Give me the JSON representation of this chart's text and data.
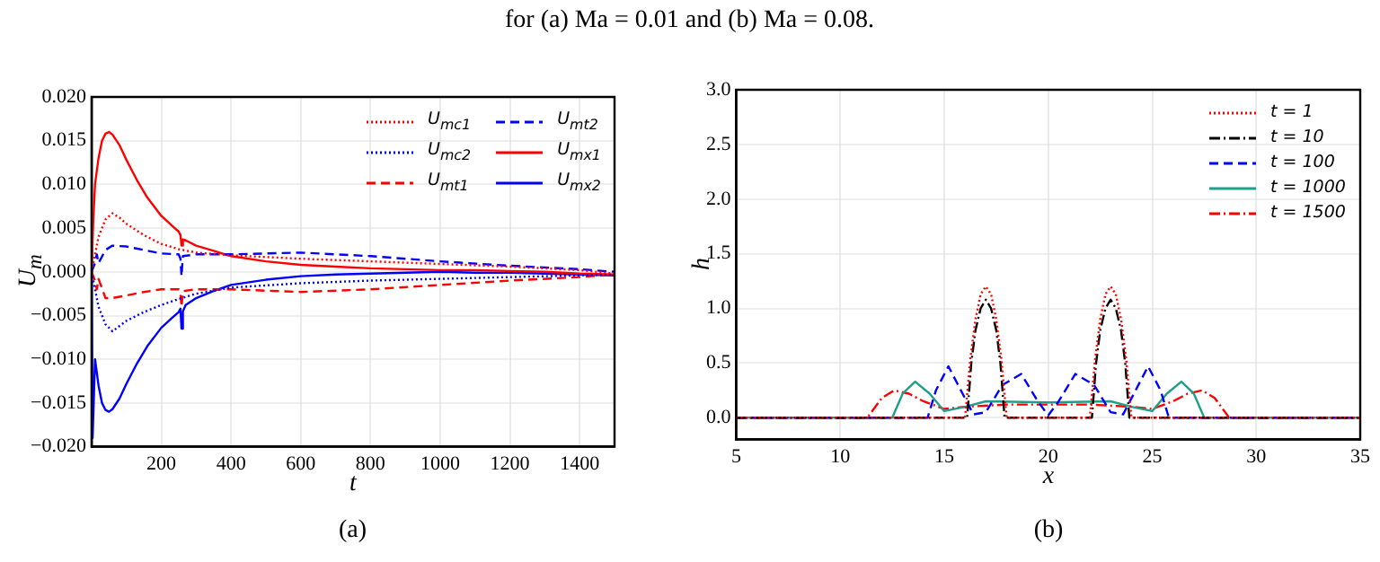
{
  "chart_data": [
    {
      "type": "line",
      "xlabel": "t",
      "ylabel": "U$_{m}$",
      "annotations": [
        "for (a) Ma = 0.01 and (b) Ma = 0.08.",
        "(a)"
      ],
      "xlim": [
        0,
        1500
      ],
      "xticks": [
        200,
        400,
        600,
        800,
        1000,
        1200,
        1400
      ],
      "ylim": [
        -0.02,
        0.02
      ],
      "yticks": [
        {
          "value": -0.02,
          "label": "−0.020"
        },
        {
          "value": -0.015,
          "label": "−0.015"
        },
        {
          "value": -0.01,
          "label": "−0.010"
        },
        {
          "value": -0.005,
          "label": "−0.005"
        },
        {
          "value": 0,
          "label": "0.000"
        },
        {
          "value": 0.005,
          "label": "0.005"
        },
        {
          "value": 0.01,
          "label": "0.010"
        },
        {
          "value": 0.015,
          "label": "0.015"
        },
        {
          "value": 0.02,
          "label": "0.020"
        }
      ],
      "grid": true,
      "legend": "top right",
      "marker": "none",
      "series": [
        {
          "name": "U$_{mc1}$",
          "color": "#ff0000",
          "line_style": "dotted",
          "x": [
            0,
            10,
            20,
            40,
            60,
            80,
            100,
            150,
            200,
            250,
            300,
            400,
            600,
            800,
            1000,
            1200,
            1400,
            1500
          ],
          "values": [
            0,
            0.002,
            0.004,
            0.006,
            0.0067,
            0.0062,
            0.0055,
            0.0042,
            0.0032,
            0.0026,
            0.0022,
            0.0019,
            0.0015,
            0.0012,
            0.0009,
            0.0006,
            0.0002,
            -0.0002
          ]
        },
        {
          "name": "U$_{mc2}$",
          "color": "#0000ff",
          "line_style": "dotted",
          "x": [
            0,
            10,
            20,
            40,
            60,
            80,
            100,
            150,
            200,
            250,
            300,
            400,
            600,
            800,
            1000,
            1200,
            1400,
            1500
          ],
          "values": [
            0,
            -0.002,
            -0.004,
            -0.006,
            -0.0068,
            -0.0062,
            -0.0056,
            -0.0046,
            -0.0038,
            -0.0031,
            -0.0025,
            -0.0018,
            -0.0013,
            -0.001,
            -0.0008,
            -0.0006,
            -0.0004,
            -0.0003
          ]
        },
        {
          "name": "U$_{mt1}$",
          "color": "#ff0000",
          "line_style": "dashed",
          "x": [
            0,
            10,
            15,
            20,
            40,
            60,
            100,
            150,
            200,
            250,
            255,
            258,
            262,
            300,
            400,
            600,
            800,
            1000,
            1200,
            1400,
            1500
          ],
          "values": [
            0,
            -0.001,
            -0.002,
            -0.0008,
            -0.003,
            -0.003,
            -0.0027,
            -0.0023,
            -0.002,
            -0.002,
            -0.0025,
            -0.004,
            -0.0022,
            -0.002,
            -0.002,
            -0.0023,
            -0.002,
            -0.0015,
            -0.001,
            -0.0006,
            -0.0003
          ]
        },
        {
          "name": "U$_{mt2}$",
          "color": "#0000ff",
          "line_style": "dashed",
          "x": [
            0,
            10,
            15,
            20,
            40,
            60,
            100,
            150,
            200,
            250,
            255,
            258,
            262,
            300,
            400,
            600,
            800,
            1000,
            1200,
            1400,
            1500
          ],
          "values": [
            0,
            0.001,
            0.002,
            0.001,
            0.0025,
            0.003,
            0.0029,
            0.0025,
            0.0021,
            0.002,
            0.0015,
            -0.0005,
            0.0018,
            0.002,
            0.002,
            0.0022,
            0.0018,
            0.0012,
            0.0007,
            0.0003,
            0
          ]
        },
        {
          "name": "U$_{mx1}$",
          "color": "#ff0000",
          "line_style": "solid",
          "x": [
            0,
            5,
            10,
            20,
            30,
            40,
            50,
            60,
            80,
            100,
            130,
            160,
            200,
            230,
            250,
            255,
            258,
            262,
            270,
            300,
            350,
            400,
            500,
            600,
            700,
            800,
            900,
            1000,
            1100,
            1200,
            1300,
            1400,
            1500
          ],
          "values": [
            0,
            0.006,
            0.01,
            0.013,
            0.015,
            0.0158,
            0.016,
            0.0157,
            0.0145,
            0.0128,
            0.0105,
            0.0085,
            0.0064,
            0.0053,
            0.0046,
            0.0042,
            0.003,
            0.0037,
            0.0036,
            0.003,
            0.0024,
            0.0018,
            0.0012,
            0.0008,
            0.0006,
            0.0004,
            0.0003,
            0.0002,
            0.0002,
            0.0001,
            0,
            -0.0002,
            -0.0003
          ]
        },
        {
          "name": "U$_{mx2}$",
          "color": "#0000ff",
          "line_style": "solid",
          "x": [
            0,
            3,
            10,
            20,
            30,
            40,
            50,
            60,
            80,
            100,
            130,
            160,
            200,
            230,
            250,
            255,
            258,
            262,
            270,
            300,
            350,
            400,
            500,
            600,
            700,
            800,
            900,
            1000,
            1100,
            1200,
            1300,
            1400,
            1500
          ],
          "values": [
            0,
            -0.019,
            -0.01,
            -0.013,
            -0.015,
            -0.0158,
            -0.016,
            -0.0157,
            -0.0145,
            -0.0128,
            -0.0105,
            -0.0085,
            -0.0064,
            -0.0053,
            -0.0046,
            -0.0042,
            -0.0065,
            -0.0045,
            -0.0038,
            -0.003,
            -0.0022,
            -0.0015,
            -0.0009,
            -0.0005,
            -0.0003,
            -0.0002,
            -0.0001,
            0,
            -0.0001,
            -0.0001,
            -0.0002,
            -0.0003,
            -0.0004
          ]
        }
      ]
    },
    {
      "type": "line",
      "xlabel": "x",
      "ylabel": "h",
      "annotations": [
        "(b)"
      ],
      "xlim": [
        5,
        35
      ],
      "xticks": [
        5,
        10,
        15,
        20,
        25,
        30,
        35
      ],
      "ylim": [
        -0.2,
        3.0
      ],
      "yticks": [
        {
          "value": 0,
          "label": "0.0"
        },
        0.5,
        {
          "value": 1,
          "label": "1.0"
        },
        1.5,
        {
          "value": 2,
          "label": "2.0"
        },
        2.5,
        {
          "value": 3,
          "label": "3.0"
        }
      ],
      "grid": true,
      "legend": "top right",
      "marker": "none",
      "series": [
        {
          "name": "t = 1",
          "color": "#ff0000",
          "line_style": "dotted",
          "x": [
            5,
            16,
            16.25,
            16.5,
            16.75,
            17,
            17.25,
            17.5,
            17.75,
            18,
            22,
            22.25,
            22.5,
            22.75,
            23,
            23.25,
            23.5,
            23.75,
            24,
            35
          ],
          "values": [
            0,
            0,
            0.53,
            0.9,
            1.13,
            1.2,
            1.13,
            0.9,
            0.53,
            0,
            0,
            0.53,
            0.9,
            1.13,
            1.2,
            1.13,
            0.9,
            0.53,
            0,
            0
          ]
        },
        {
          "name": "t = 10",
          "color": "#000000",
          "line_style": "dashdot",
          "x": [
            5,
            16.1,
            16.3,
            16.5,
            16.75,
            17,
            17.25,
            17.5,
            17.7,
            17.9,
            22.1,
            22.3,
            22.5,
            22.75,
            23,
            23.25,
            23.5,
            23.7,
            23.9,
            35
          ],
          "values": [
            0,
            0,
            0.5,
            0.8,
            1.0,
            1.08,
            1.0,
            0.8,
            0.5,
            0,
            0,
            0.5,
            0.8,
            1.0,
            1.08,
            1.0,
            0.8,
            0.5,
            0,
            0
          ]
        },
        {
          "name": "t = 100",
          "color": "#0000ff",
          "line_style": "dashed",
          "x": [
            5,
            14.2,
            14.6,
            15.2,
            15.8,
            16.4,
            17,
            17.8,
            18.7,
            19.5,
            20,
            20.5,
            21.3,
            22.2,
            23,
            23.6,
            24.2,
            24.8,
            25.4,
            25.8,
            35
          ],
          "values": [
            0,
            0,
            0.25,
            0.47,
            0.25,
            0.03,
            0.05,
            0.3,
            0.4,
            0.15,
            0.02,
            0.15,
            0.4,
            0.3,
            0.05,
            0.03,
            0.25,
            0.47,
            0.25,
            0,
            0
          ]
        },
        {
          "name": "t = 1000",
          "color": "#1f9e89",
          "line_style": "solid",
          "x": [
            5,
            12.5,
            13,
            13.6,
            14.3,
            15,
            16,
            17,
            20,
            23,
            24,
            25,
            25.7,
            26.4,
            27,
            27.5,
            35
          ],
          "values": [
            0,
            0,
            0.22,
            0.33,
            0.22,
            0.06,
            0.1,
            0.15,
            0.14,
            0.15,
            0.1,
            0.06,
            0.22,
            0.33,
            0.22,
            0,
            0
          ]
        },
        {
          "name": "t = 1500",
          "color": "#ff0000",
          "line_style": "dashdot",
          "x": [
            5,
            11.3,
            12,
            12.6,
            13.3,
            14,
            15,
            16,
            18,
            20,
            22,
            24,
            25,
            26,
            26.7,
            27.4,
            28,
            28.7,
            35
          ],
          "values": [
            0,
            0,
            0.18,
            0.25,
            0.22,
            0.15,
            0.08,
            0.1,
            0.12,
            0.12,
            0.12,
            0.1,
            0.08,
            0.15,
            0.22,
            0.25,
            0.18,
            0,
            0
          ]
        }
      ]
    }
  ]
}
